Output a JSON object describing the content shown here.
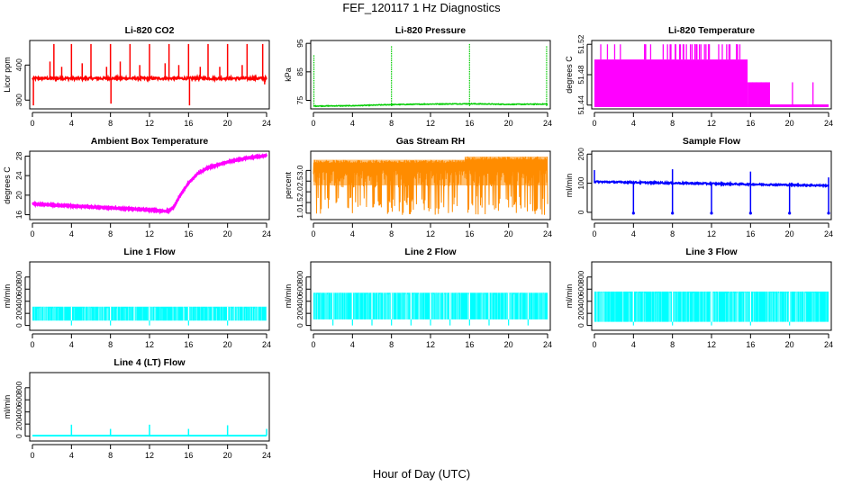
{
  "page": {
    "title": "FEF_120117  1 Hz Diagnostics",
    "xlabel": "Hour of Day (UTC)"
  },
  "chart_data": [
    {
      "type": "line",
      "title": "Li-820 CO2",
      "ylabel": "Licor ppm",
      "color": "#ff0000",
      "style": "spiky",
      "baseline": 362,
      "noise": 7,
      "xlim": [
        0,
        24
      ],
      "ylim": [
        275,
        470
      ],
      "xticks": [
        0,
        4,
        8,
        12,
        16,
        20,
        24
      ],
      "yticks": [
        300,
        400
      ],
      "ytick_labels": [
        "300",
        "400"
      ],
      "x": [
        0,
        24
      ],
      "spikes": [
        {
          "x": 0.1,
          "y": 285
        },
        {
          "x": 1.8,
          "y": 410
        },
        {
          "x": 2.2,
          "y": 460
        },
        {
          "x": 3.0,
          "y": 395
        },
        {
          "x": 4.0,
          "y": 460
        },
        {
          "x": 5.1,
          "y": 405
        },
        {
          "x": 6.0,
          "y": 460
        },
        {
          "x": 7.6,
          "y": 395
        },
        {
          "x": 8.0,
          "y": 460
        },
        {
          "x": 8.05,
          "y": 290
        },
        {
          "x": 9.0,
          "y": 410
        },
        {
          "x": 10.0,
          "y": 460
        },
        {
          "x": 11.0,
          "y": 400
        },
        {
          "x": 12.0,
          "y": 460
        },
        {
          "x": 13.6,
          "y": 405
        },
        {
          "x": 14.0,
          "y": 460
        },
        {
          "x": 15.0,
          "y": 400
        },
        {
          "x": 16.0,
          "y": 460
        },
        {
          "x": 16.1,
          "y": 285
        },
        {
          "x": 17.2,
          "y": 395
        },
        {
          "x": 18.0,
          "y": 460
        },
        {
          "x": 19.2,
          "y": 395
        },
        {
          "x": 20.0,
          "y": 460
        },
        {
          "x": 21.5,
          "y": 400
        },
        {
          "x": 22.0,
          "y": 460
        },
        {
          "x": 23.6,
          "y": 460
        },
        {
          "x": 23.8,
          "y": 345
        }
      ]
    },
    {
      "type": "line",
      "title": "Li-820 Pressure",
      "ylabel": "kPa",
      "color": "#00cc00",
      "style": "pressure",
      "xlim": [
        0,
        24
      ],
      "ylim": [
        72,
        96
      ],
      "xticks": [
        0,
        4,
        8,
        12,
        16,
        20,
        24
      ],
      "yticks": [
        75,
        85,
        95
      ],
      "ytick_labels": [
        "75",
        "85",
        "95"
      ],
      "x": [
        0,
        4,
        8,
        12,
        16,
        20,
        24
      ],
      "values": [
        73.0,
        73.1,
        73.5,
        73.7,
        73.8,
        73.6,
        73.7
      ],
      "spikes": [
        {
          "x": 0.05,
          "y": 91
        },
        {
          "x": 8.0,
          "y": 94
        },
        {
          "x": 16.0,
          "y": 95
        },
        {
          "x": 23.9,
          "y": 94
        }
      ]
    },
    {
      "type": "area",
      "title": "Li-820 Temperature",
      "ylabel": "degrees C",
      "color": "#ff00ff",
      "style": "stepped",
      "xlim": [
        0,
        24
      ],
      "ylim": [
        51.435,
        51.525
      ],
      "xticks": [
        0,
        4,
        8,
        12,
        16,
        20,
        24
      ],
      "yticks": [
        51.44,
        51.48,
        51.52
      ],
      "ytick_labels": [
        "51.44",
        "51.48",
        "51.52"
      ],
      "x": [
        0,
        24
      ],
      "segments": [
        {
          "x0": 0.0,
          "x1": 15.7,
          "y": 51.5
        },
        {
          "x0": 15.7,
          "x1": 18.0,
          "y": 51.47
        },
        {
          "x0": 18.0,
          "x1": 24.0,
          "y": 51.44
        }
      ],
      "spike_region": [
        0.1,
        15.5
      ],
      "spike_top": 51.52
    },
    {
      "type": "line",
      "title": "Ambient Box Temperature",
      "ylabel": "degrees C",
      "color": "#ff00ff",
      "style": "thickline",
      "noise": 0.35,
      "xlim": [
        0,
        24
      ],
      "ylim": [
        15,
        29
      ],
      "xticks": [
        0,
        4,
        8,
        12,
        16,
        20,
        24
      ],
      "yticks": [
        16,
        20,
        24,
        28
      ],
      "ytick_labels": [
        "16",
        "20",
        "24",
        "28"
      ],
      "x": [
        0,
        2,
        4,
        6,
        8,
        10,
        12,
        13,
        14,
        14.5,
        15,
        16,
        17,
        18,
        20,
        22,
        24
      ],
      "values": [
        18.2,
        18.0,
        17.8,
        17.6,
        17.4,
        17.2,
        17.0,
        16.8,
        16.8,
        17.6,
        19.5,
        22.5,
        24.5,
        25.6,
        26.8,
        27.6,
        28.1
      ]
    },
    {
      "type": "scatter",
      "title": "Gas Stream RH",
      "ylabel": "percent",
      "color": "#ff8c00",
      "color2": "#cc9900",
      "style": "noisyband",
      "xlim": [
        0,
        24
      ],
      "ylim": [
        0.7,
        3.9
      ],
      "xticks": [
        0,
        4,
        8,
        12,
        16,
        20,
        24
      ],
      "yticks": [
        1.0,
        1.5,
        2.0,
        2.5,
        3.0
      ],
      "ytick_labels": [
        "1.0",
        "1.5",
        "2.0",
        "2.5",
        "3.0"
      ],
      "x": [
        0,
        24
      ],
      "band_top": 3.5,
      "band_top_late": 3.65,
      "band_bottom": 0.9
    },
    {
      "type": "line",
      "title": "Sample Flow",
      "ylabel": "ml/min",
      "color": "#0000ff",
      "style": "flowdips",
      "xlim": [
        0,
        24
      ],
      "ylim": [
        -25,
        210
      ],
      "xticks": [
        0,
        4,
        8,
        12,
        16,
        20,
        24
      ],
      "yticks": [
        0,
        100,
        200
      ],
      "ytick_labels": [
        "0",
        "100",
        "200"
      ],
      "x": [
        0,
        24
      ],
      "baseline": 105,
      "baseline_end": 92,
      "dips": [
        4.0,
        8.0,
        12.0,
        16.0,
        20.0,
        24.0
      ],
      "peaks": [
        {
          "x": 0.0,
          "y": 145
        },
        {
          "x": 8.0,
          "y": 148
        },
        {
          "x": 16.0,
          "y": 140
        },
        {
          "x": 24.0,
          "y": 120
        }
      ]
    },
    {
      "type": "area",
      "title": "Line 1 Flow",
      "ylabel": "ml/min",
      "color": "#00ffff",
      "style": "flowband",
      "xlim": [
        0,
        24
      ],
      "ylim": [
        -80,
        1050
      ],
      "xticks": [
        0,
        4,
        8,
        12,
        16,
        20,
        24
      ],
      "yticks": [
        0,
        200,
        400,
        600,
        800
      ],
      "ytick_labels": [
        "0",
        "200",
        "400",
        "600",
        "800"
      ],
      "x": [
        0,
        24
      ],
      "top": 310,
      "bottom": 80,
      "gaps": [
        4,
        8,
        12,
        16,
        20
      ]
    },
    {
      "type": "area",
      "title": "Line 2 Flow",
      "ylabel": "ml/min",
      "color": "#00ffff",
      "style": "flowband",
      "xlim": [
        0,
        24
      ],
      "ylim": [
        -80,
        1050
      ],
      "xticks": [
        0,
        4,
        8,
        12,
        16,
        20,
        24
      ],
      "yticks": [
        0,
        200,
        400,
        600,
        800
      ],
      "ytick_labels": [
        "0",
        "200",
        "400",
        "600",
        "800"
      ],
      "x": [
        0,
        24
      ],
      "top": 540,
      "bottom": 100,
      "gaps": [
        2,
        4,
        6,
        8,
        10,
        12,
        14,
        16,
        18,
        20,
        22
      ]
    },
    {
      "type": "area",
      "title": "Line 3 Flow",
      "ylabel": "ml/min",
      "color": "#00ffff",
      "style": "flowband",
      "xlim": [
        0,
        24
      ],
      "ylim": [
        -80,
        1050
      ],
      "xticks": [
        0,
        4,
        8,
        12,
        16,
        20,
        24
      ],
      "yticks": [
        0,
        200,
        400,
        600,
        800
      ],
      "ytick_labels": [
        "0",
        "200",
        "400",
        "600",
        "800"
      ],
      "x": [
        0,
        24
      ],
      "top": 560,
      "bottom": 60,
      "gaps": [
        4,
        8,
        12,
        16,
        20
      ]
    },
    {
      "type": "line",
      "title": "Line 4 (LT) Flow",
      "ylabel": "ml/min",
      "color": "#00ffff",
      "style": "flatspikes",
      "xlim": [
        0,
        24
      ],
      "ylim": [
        -80,
        1050
      ],
      "xticks": [
        0,
        4,
        8,
        12,
        16,
        20,
        24
      ],
      "yticks": [
        0,
        200,
        400,
        600,
        800
      ],
      "ytick_labels": [
        "0",
        "200",
        "400",
        "600",
        "800"
      ],
      "x": [
        0,
        24
      ],
      "baseline": 10,
      "spikes": [
        {
          "x": 4,
          "y": 190
        },
        {
          "x": 8,
          "y": 120
        },
        {
          "x": 12,
          "y": 190
        },
        {
          "x": 16,
          "y": 120
        },
        {
          "x": 20,
          "y": 180
        },
        {
          "x": 24,
          "y": 120
        }
      ]
    }
  ]
}
